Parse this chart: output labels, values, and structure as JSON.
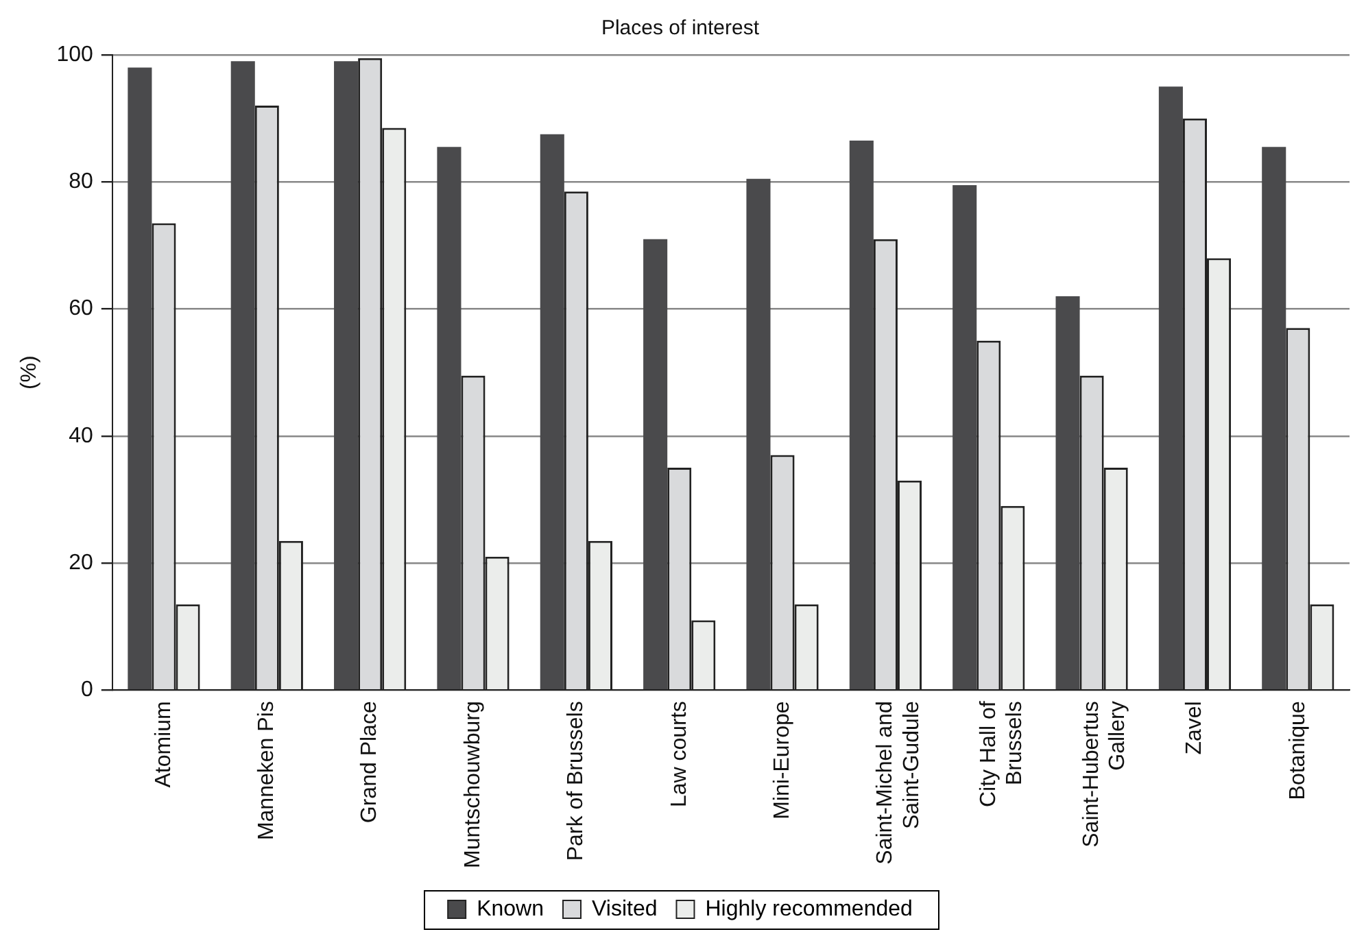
{
  "chart_data": {
    "type": "bar",
    "title": "Places of interest",
    "ylabel": "(%)",
    "categories": [
      "Atomium",
      "Manneken Pis",
      "Grand Place",
      "Muntschouwburg",
      "Park of Brussels",
      "Law courts",
      "Mini-Europe",
      "Saint-Michel and\nSaint-Gudule",
      "City Hall of\nBrussels",
      "Saint-Hubertus\nGallery",
      "Zavel",
      "Botanique"
    ],
    "series": [
      {
        "name": "Known",
        "color": "#4a4a4c",
        "values": [
          98,
          99,
          99,
          85.5,
          87.5,
          71,
          80.5,
          86.5,
          79.5,
          62,
          95,
          85.5
        ]
      },
      {
        "name": "Visited",
        "color": "#d9dadc",
        "values": [
          73.5,
          92,
          99.5,
          49.5,
          78.5,
          35,
          37,
          71,
          55,
          49.5,
          90,
          57
        ]
      },
      {
        "name": "Highly recommended",
        "color": "#ebedeb",
        "values": [
          13.5,
          23.5,
          88.5,
          21,
          23.5,
          11,
          13.5,
          33,
          29,
          35,
          68,
          13.5
        ]
      }
    ],
    "ylim": [
      0,
      100
    ],
    "yticks": [
      0,
      20,
      40,
      60,
      80,
      100
    ],
    "grid": "y",
    "legend": "bottom"
  }
}
